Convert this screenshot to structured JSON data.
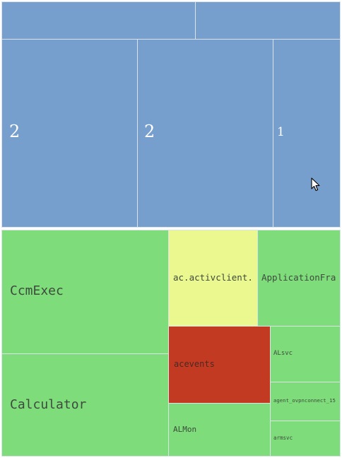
{
  "top_group": {
    "tiles": [
      {
        "label": ""
      },
      {
        "label": ""
      },
      {
        "label": "2"
      },
      {
        "label": "2"
      },
      {
        "label": "1"
      }
    ]
  },
  "bottom_group": {
    "tiles": [
      {
        "label": "CcmExec"
      },
      {
        "label": "Calculator"
      },
      {
        "label": "ac.activclient."
      },
      {
        "label": "ApplicationFra"
      },
      {
        "label": "acevents"
      },
      {
        "label": "ALsvc"
      },
      {
        "label": "agent_ovpnconnect_15"
      },
      {
        "label": "armsvc"
      },
      {
        "label": "ALMon"
      }
    ]
  },
  "colors": {
    "blue": "#769fcd",
    "green": "#7edd7a",
    "yellow": "#ebf78f",
    "red": "#c33a22"
  },
  "icons": [
    "mouse-pointer-icon"
  ]
}
